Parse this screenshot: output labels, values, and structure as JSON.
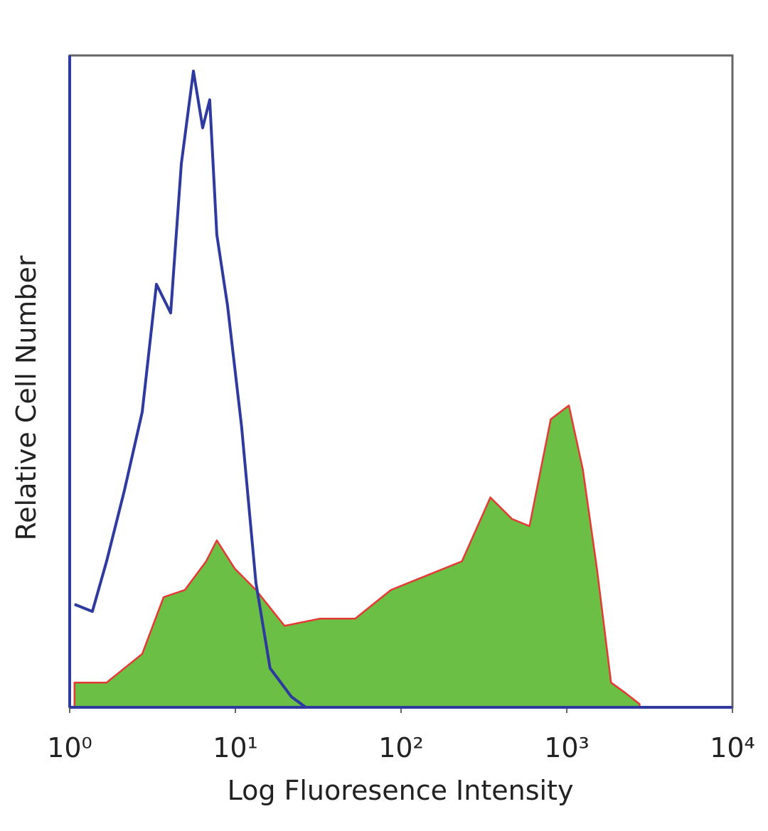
{
  "chart_data": {
    "type": "area",
    "x_label": "Log Fluoresence Intensity",
    "y_label": "Relative Cell Number",
    "xscale": "log",
    "xlim": [
      1,
      10000
    ],
    "xticks": [
      {
        "value": 1,
        "label": "10⁰"
      },
      {
        "value": 10,
        "label": "10¹"
      },
      {
        "value": 100,
        "label": "10²"
      },
      {
        "value": 1000,
        "label": "10³"
      },
      {
        "value": 10000,
        "label": "10⁴"
      }
    ],
    "ylim": [
      0,
      100
    ],
    "series": [
      {
        "color": "#2e3a9e",
        "filled": false,
        "x": [
          1.07,
          1.37,
          1.67,
          2.14,
          2.74,
          3.34,
          4.07,
          4.72,
          5.58,
          6.35,
          7.0,
          7.73,
          8.97,
          10.9,
          13.3,
          16.2,
          21.8,
          26.6,
          10000
        ],
        "values": [
          15.8,
          14.7,
          22.4,
          33.3,
          45.3,
          64.9,
          60.5,
          83.4,
          97.6,
          88.9,
          93.2,
          72.5,
          61.6,
          43.1,
          19.1,
          6.0,
          1.6,
          0,
          0
        ]
      },
      {
        "color": "#6cbf45",
        "edge_color": "#e53935",
        "filled": true,
        "x": [
          1.07,
          1.67,
          2.74,
          3.69,
          4.96,
          6.66,
          7.73,
          9.9,
          13.3,
          19.8,
          32.3,
          52.8,
          86.9,
          142,
          233,
          346,
          467,
          596,
          801,
          1030,
          1250,
          1520,
          1850,
          2260,
          2750
        ],
        "values": [
          3.8,
          3.8,
          8.2,
          16.9,
          18.0,
          22.4,
          25.6,
          21.3,
          18.0,
          12.5,
          13.6,
          13.6,
          18.0,
          20.2,
          22.4,
          32.2,
          28.9,
          27.8,
          44.2,
          46.3,
          36.5,
          21.3,
          3.8,
          2.2,
          0.5
        ]
      }
    ]
  }
}
